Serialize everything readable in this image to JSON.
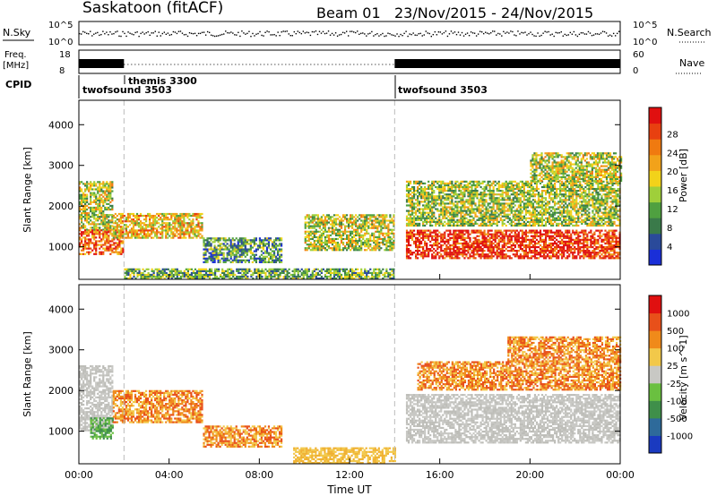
{
  "header": {
    "station": "Saskatoon (fitACF)",
    "beam": "Beam 01",
    "date_range": "23/Nov/2015 - 24/Nov/2015"
  },
  "status_panels": {
    "nsky_label": "N.Sky",
    "nsky_ticks": [
      "10^5",
      "10^0"
    ],
    "nsky_right_ticks": [
      "10^5",
      "10^0"
    ],
    "nsearch_label": "N.Search",
    "freq_label": "Freq.",
    "freq_unit": "[MHz]",
    "freq_ticks": [
      "18",
      "8"
    ],
    "nave_ticks": [
      "60",
      "0"
    ],
    "nave_label": "Nave",
    "cpid_label": "CPID",
    "cpid_entries": [
      {
        "name": "twofsound 3503",
        "start_hour": 0.0
      },
      {
        "name": "themis 3300",
        "start_hour": 2.0
      },
      {
        "name": "twofsound 3503",
        "start_hour": 14.0
      }
    ]
  },
  "chart_data": [
    {
      "type": "heatmap",
      "name": "power",
      "ylabel": "Slant Range [km]",
      "yticks": [
        "1000",
        "2000",
        "3000",
        "4000"
      ],
      "ylim": [
        200,
        4600
      ],
      "xlim": [
        0,
        24
      ],
      "colorbar_label": "Power [dB]",
      "colorbar_ticks": [
        "4",
        "8",
        "12",
        "16",
        "20",
        "24",
        "28"
      ],
      "colorbar_colors": [
        "#1a2fd8",
        "#2a4a9a",
        "#3a7a4a",
        "#4fa040",
        "#9fcf3a",
        "#f2d21a",
        "#f2a21a",
        "#f07a10",
        "#e84010",
        "#e01010"
      ],
      "regions": [
        {
          "t": [
            0.0,
            2.0
          ],
          "r": [
            800,
            1400
          ],
          "level": 0.8
        },
        {
          "t": [
            0.0,
            1.5
          ],
          "r": [
            1400,
            2600
          ],
          "level": 0.5
        },
        {
          "t": [
            1.5,
            5.5
          ],
          "r": [
            1200,
            1800
          ],
          "level": 0.6
        },
        {
          "t": [
            5.5,
            9.0
          ],
          "r": [
            600,
            1200
          ],
          "level": 0.3
        },
        {
          "t": [
            10.0,
            14.0
          ],
          "r": [
            900,
            1800
          ],
          "level": 0.5
        },
        {
          "t": [
            14.5,
            24.0
          ],
          "r": [
            700,
            1400
          ],
          "level": 0.9
        },
        {
          "t": [
            14.5,
            24.0
          ],
          "r": [
            1500,
            2600
          ],
          "level": 0.45
        },
        {
          "t": [
            20.0,
            24.0
          ],
          "r": [
            2600,
            3300
          ],
          "level": 0.5
        },
        {
          "t": [
            2.0,
            14.0
          ],
          "r": [
            200,
            450
          ],
          "level": 0.35
        }
      ]
    },
    {
      "type": "heatmap",
      "name": "velocity",
      "ylabel": "Slant Range [km]",
      "yticks": [
        "1000",
        "2000",
        "3000",
        "4000"
      ],
      "ylim": [
        200,
        4600
      ],
      "xlim": [
        0,
        24
      ],
      "xticks": [
        "00:00",
        "04:00",
        "08:00",
        "12:00",
        "16:00",
        "20:00",
        "00:00"
      ],
      "xlabel": "Time UT",
      "colorbar_label": "Velocity [m s^-1]",
      "colorbar_ticks": [
        "1000",
        "500",
        "100",
        "25",
        "-25",
        "-100",
        "-500",
        "-1000"
      ],
      "colorbar_colors": [
        "#1a3ac0",
        "#2e6a9a",
        "#3f8f4a",
        "#6ac040",
        "#c8c8c4",
        "#f2c84a",
        "#f08a1a",
        "#e8501a",
        "#e01010"
      ],
      "regions": [
        {
          "t": [
            0.0,
            1.5
          ],
          "r": [
            1000,
            2600
          ],
          "tone": "ground"
        },
        {
          "t": [
            0.5,
            1.5
          ],
          "r": [
            800,
            1300
          ],
          "tone": "green"
        },
        {
          "t": [
            1.5,
            5.5
          ],
          "r": [
            1200,
            2000
          ],
          "tone": "orange"
        },
        {
          "t": [
            5.5,
            9.0
          ],
          "r": [
            600,
            1100
          ],
          "tone": "orange"
        },
        {
          "t": [
            9.5,
            14.0
          ],
          "r": [
            200,
            600
          ],
          "tone": "yellow"
        },
        {
          "t": [
            14.5,
            24.0
          ],
          "r": [
            700,
            1900
          ],
          "tone": "ground"
        },
        {
          "t": [
            15.0,
            24.0
          ],
          "r": [
            2000,
            2700
          ],
          "tone": "orange"
        },
        {
          "t": [
            19.0,
            24.0
          ],
          "r": [
            2700,
            3300
          ],
          "tone": "orange"
        }
      ]
    }
  ]
}
